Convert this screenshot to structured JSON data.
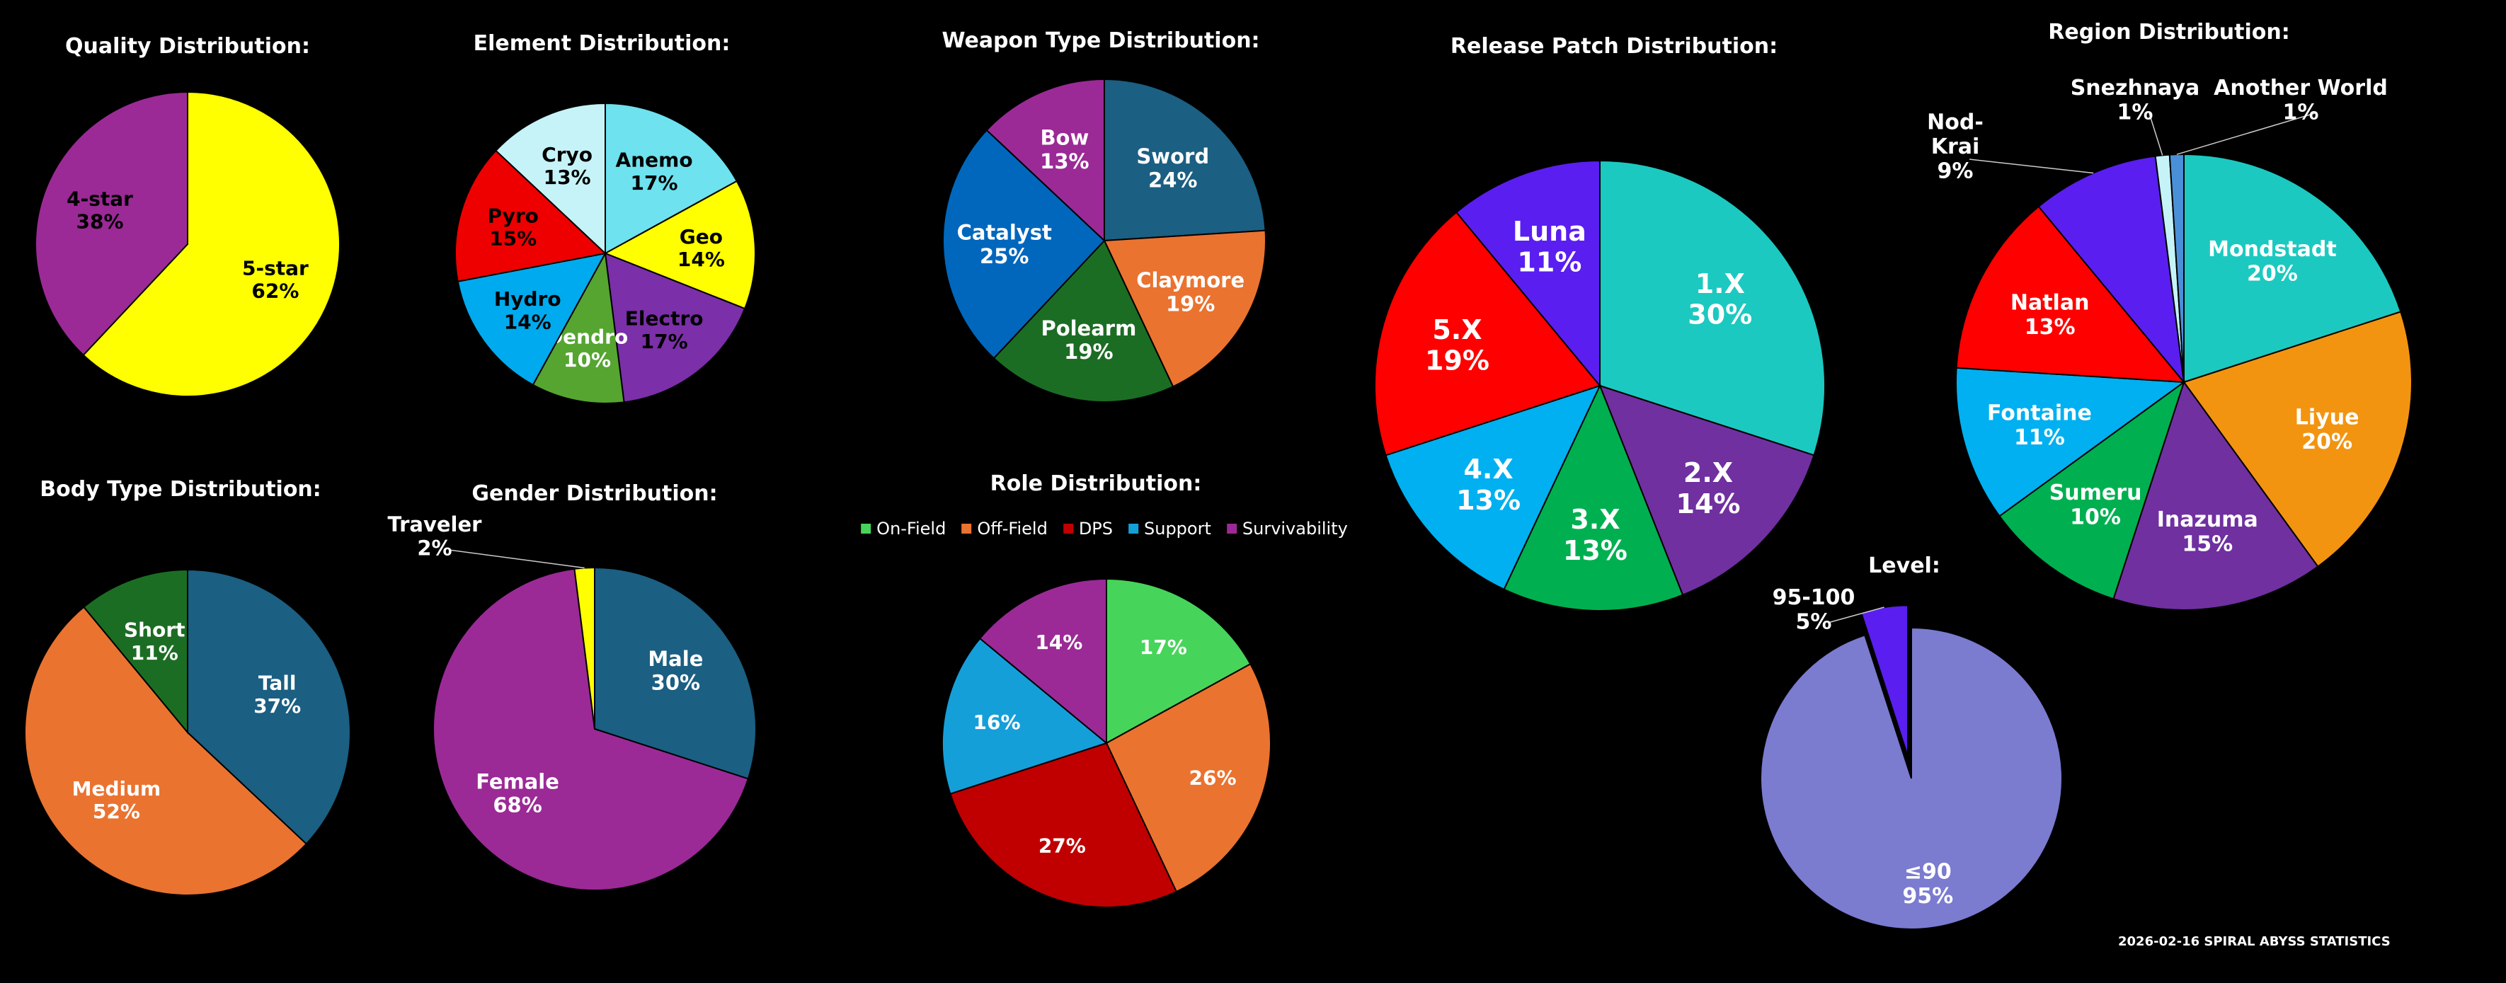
{
  "footer": "2026-02-16 SPIRAL ABYSS STATISTICS",
  "chart_data": [
    {
      "id": "quality",
      "type": "pie",
      "title": "Quality Distribution:",
      "categories": [
        "5-star",
        "4-star"
      ],
      "values": [
        62,
        38
      ],
      "labels": [
        "62%",
        "38%"
      ],
      "colors": [
        "#ffff00",
        "#9b2a96"
      ],
      "text_colors": [
        "#000000",
        "#000000"
      ]
    },
    {
      "id": "element",
      "type": "pie",
      "title": "Element Distribution:",
      "categories": [
        "Anemo",
        "Geo",
        "Electro",
        "Dendro",
        "Hydro",
        "Pyro",
        "Cryo"
      ],
      "values": [
        17,
        14,
        17,
        10,
        14,
        15,
        13
      ],
      "labels": [
        "17%",
        "14%",
        "17%",
        "10%",
        "14%",
        "15%",
        "13%"
      ],
      "colors": [
        "#6ee2ee",
        "#ffff00",
        "#7b2fa8",
        "#55a530",
        "#00aaee",
        "#ee0000",
        "#c6f3f8"
      ],
      "text_colors": [
        "#000000",
        "#000000",
        "#000000",
        "#ffffff",
        "#000000",
        "#000000",
        "#000000"
      ]
    },
    {
      "id": "weapon",
      "type": "pie",
      "title": "Weapon Type Distribution:",
      "categories": [
        "Sword",
        "Claymore",
        "Polearm",
        "Catalyst",
        "Bow"
      ],
      "values": [
        24,
        19,
        19,
        25,
        13
      ],
      "labels": [
        "24%",
        "19%",
        "19%",
        "25%",
        "13%"
      ],
      "colors": [
        "#1b5f82",
        "#ea7330",
        "#1c6d24",
        "#0067bd",
        "#9b2a96"
      ],
      "text_colors": [
        "#ffffff",
        "#ffffff",
        "#ffffff",
        "#ffffff",
        "#ffffff"
      ]
    },
    {
      "id": "patch",
      "type": "pie",
      "title": "Release Patch Distribution:",
      "categories": [
        "1.X",
        "2.X",
        "3.X",
        "4.X",
        "5.X",
        "Luna"
      ],
      "values": [
        30,
        14,
        13,
        13,
        19,
        11
      ],
      "labels": [
        "30%",
        "14%",
        "13%",
        "13%",
        "19%",
        "11%"
      ],
      "colors": [
        "#1cc9c0",
        "#7030a0",
        "#00b050",
        "#00b0f0",
        "#ff0000",
        "#5a1ef0"
      ],
      "text_colors": [
        "#ffffff",
        "#ffffff",
        "#ffffff",
        "#ffffff",
        "#ffffff",
        "#ffffff"
      ]
    },
    {
      "id": "region",
      "type": "pie",
      "title": "Region Distribution:",
      "categories": [
        "Mondstadt",
        "Liyue",
        "Inazuma",
        "Sumeru",
        "Fontaine",
        "Natlan",
        "Nod-Krai",
        "Snezhnaya",
        "Another World"
      ],
      "values": [
        20,
        20,
        15,
        10,
        11,
        13,
        9,
        1,
        1
      ],
      "labels": [
        "20%",
        "20%",
        "15%",
        "10%",
        "11%",
        "13%",
        "9%",
        "1%",
        "1%"
      ],
      "colors": [
        "#1cc9c0",
        "#f39410",
        "#7030a0",
        "#00b050",
        "#00b0f0",
        "#ff0000",
        "#5a1ef0",
        "#c6f3f8",
        "#4a90d9"
      ],
      "text_colors": [
        "#ffffff",
        "#ffffff",
        "#ffffff",
        "#ffffff",
        "#ffffff",
        "#ffffff",
        "#ffffff",
        "#ffffff",
        "#ffffff"
      ]
    },
    {
      "id": "body",
      "type": "pie",
      "title": "Body Type Distribution:",
      "categories": [
        "Tall",
        "Medium",
        "Short"
      ],
      "values": [
        37,
        52,
        11
      ],
      "labels": [
        "37%",
        "52%",
        "11%"
      ],
      "colors": [
        "#1b5f82",
        "#ea7330",
        "#1c6d24"
      ],
      "text_colors": [
        "#ffffff",
        "#ffffff",
        "#ffffff"
      ]
    },
    {
      "id": "gender",
      "type": "pie",
      "title": "Gender Distribution:",
      "categories": [
        "Male",
        "Female",
        "Traveler"
      ],
      "values": [
        30,
        68,
        2
      ],
      "labels": [
        "30%",
        "68%",
        "2%"
      ],
      "colors": [
        "#1b5f82",
        "#9b2a96",
        "#ffff00"
      ],
      "text_colors": [
        "#ffffff",
        "#ffffff",
        "#ffffff"
      ]
    },
    {
      "id": "role",
      "type": "pie",
      "title": "Role Distribution:",
      "categories": [
        "On-Field",
        "Off-Field",
        "DPS",
        "Support",
        "Survivability"
      ],
      "values": [
        17,
        26,
        27,
        16,
        14
      ],
      "labels": [
        "17%",
        "26%",
        "27%",
        "16%",
        "14%"
      ],
      "colors": [
        "#47d45a",
        "#ea7330",
        "#c00000",
        "#159fd9",
        "#9b2a96"
      ],
      "text_colors": [
        "#ffffff",
        "#ffffff",
        "#ffffff",
        "#ffffff",
        "#ffffff"
      ],
      "legend": [
        "On-Field",
        "Off-Field",
        "DPS",
        "Support",
        "Survivability"
      ]
    },
    {
      "id": "level",
      "type": "pie",
      "title": "Level:",
      "categories": [
        "≤90",
        "95-100"
      ],
      "values": [
        95,
        5
      ],
      "labels": [
        "95%",
        "5%"
      ],
      "colors": [
        "#7b7bd0",
        "#5a1ef0"
      ],
      "text_colors": [
        "#ffffff",
        "#ffffff"
      ]
    }
  ]
}
